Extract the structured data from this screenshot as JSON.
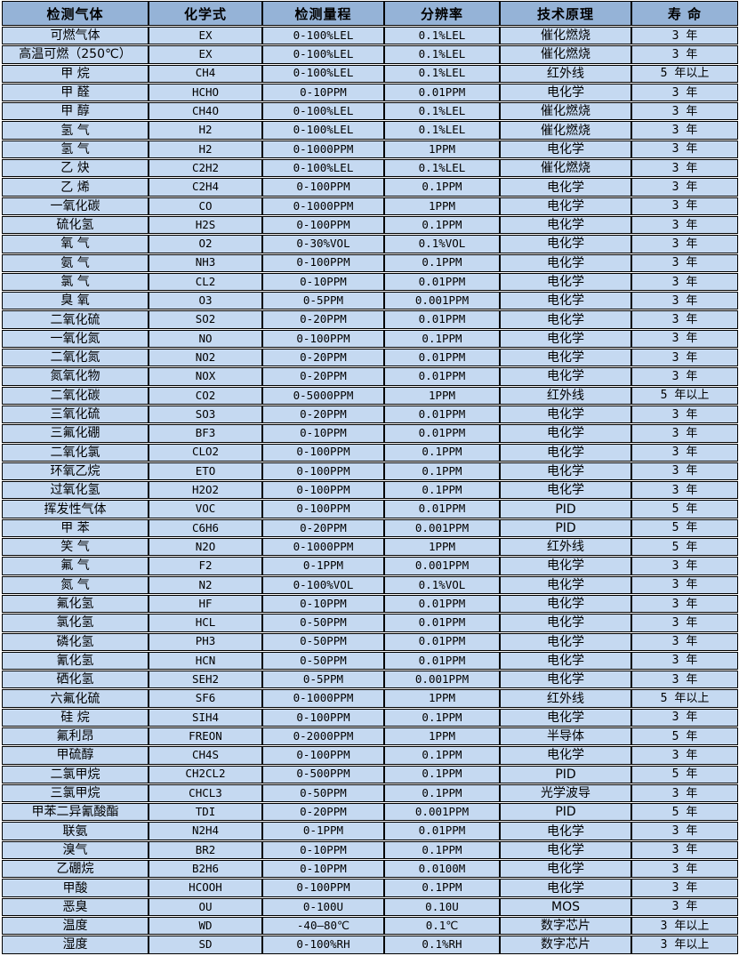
{
  "colors": {
    "header_bg": "#95B3D7",
    "row_bg": "#C5D9F1",
    "border": "#000000",
    "text": "#000000"
  },
  "table": {
    "columns": [
      "检测气体",
      "化学式",
      "检测量程",
      "分辨率",
      "技术原理",
      "寿 命"
    ],
    "column_keys": [
      "gas",
      "formula",
      "range",
      "resolution",
      "principle",
      "lifespan"
    ],
    "rows": [
      [
        "可燃气体",
        "EX",
        "0-100%LEL",
        "0.1%LEL",
        "催化燃烧",
        "3 年"
      ],
      [
        "高温可燃（250℃）",
        "EX",
        "0-100%LEL",
        "0.1%LEL",
        "催化燃烧",
        "3 年"
      ],
      [
        "甲 烷",
        "CH4",
        "0-100%LEL",
        "0.1%LEL",
        "红外线",
        "5 年以上"
      ],
      [
        "甲 醛",
        "HCHO",
        "0-10PPM",
        "0.01PPM",
        "电化学",
        "3 年"
      ],
      [
        "甲 醇",
        "CH4O",
        "0-100%LEL",
        "0.1%LEL",
        "催化燃烧",
        "3 年"
      ],
      [
        "氢 气",
        "H2",
        "0-100%LEL",
        "0.1%LEL",
        "催化燃烧",
        "3 年"
      ],
      [
        "氢 气",
        "H2",
        "0-1000PPM",
        "1PPM",
        "电化学",
        "3 年"
      ],
      [
        "乙 炔",
        "C2H2",
        "0-100%LEL",
        "0.1%LEL",
        "催化燃烧",
        "3 年"
      ],
      [
        "乙 烯",
        "C2H4",
        "0-100PPM",
        "0.1PPM",
        "电化学",
        "3 年"
      ],
      [
        "一氧化碳",
        "CO",
        "0-1000PPM",
        "1PPM",
        "电化学",
        "3 年"
      ],
      [
        "硫化氢",
        "H2S",
        "0-100PPM",
        "0.1PPM",
        "电化学",
        "3 年"
      ],
      [
        "氧 气",
        "O2",
        "0-30%VOL",
        "0.1%VOL",
        "电化学",
        "3 年"
      ],
      [
        "氨 气",
        "NH3",
        "0-100PPM",
        "0.1PPM",
        "电化学",
        "3 年"
      ],
      [
        "氯 气",
        "CL2",
        "0-10PPM",
        "0.01PPM",
        "电化学",
        "3 年"
      ],
      [
        "臭 氧",
        "O3",
        "0-5PPM",
        "0.001PPM",
        "电化学",
        "3 年"
      ],
      [
        "二氧化硫",
        "SO2",
        "0-20PPM",
        "0.01PPM",
        "电化学",
        "3 年"
      ],
      [
        "一氧化氮",
        "NO",
        "0-100PPM",
        "0.1PPM",
        "电化学",
        "3 年"
      ],
      [
        "二氧化氮",
        "NO2",
        "0-20PPM",
        "0.01PPM",
        "电化学",
        "3 年"
      ],
      [
        "氮氧化物",
        "NOX",
        "0-20PPM",
        "0.01PPM",
        "电化学",
        "3 年"
      ],
      [
        "二氧化碳",
        "CO2",
        "0-5000PPM",
        "1PPM",
        "红外线",
        "5 年以上"
      ],
      [
        "三氧化硫",
        "SO3",
        "0-20PPM",
        "0.01PPM",
        "电化学",
        "3 年"
      ],
      [
        "三氟化硼",
        "BF3",
        "0-10PPM",
        "0.01PPM",
        "电化学",
        "3 年"
      ],
      [
        "二氧化氯",
        "CLO2",
        "0-100PPM",
        "0.1PPM",
        "电化学",
        "3 年"
      ],
      [
        "环氧乙烷",
        "ETO",
        "0-100PPM",
        "0.1PPM",
        "电化学",
        "3 年"
      ],
      [
        "过氧化氢",
        "H2O2",
        "0-100PPM",
        "0.1PPM",
        "电化学",
        "3 年"
      ],
      [
        "挥发性气体",
        "VOC",
        "0-100PPM",
        "0.01PPM",
        "PID",
        "5 年"
      ],
      [
        "甲 苯",
        "C6H6",
        "0-20PPM",
        "0.001PPM",
        "PID",
        "5 年"
      ],
      [
        "笑 气",
        "N2O",
        "0-1000PPM",
        "1PPM",
        "红外线",
        "5 年"
      ],
      [
        "氟 气",
        "F2",
        "0-1PPM",
        "0.001PPM",
        "电化学",
        "3 年"
      ],
      [
        "氮 气",
        "N2",
        "0-100%VOL",
        "0.1%VOL",
        "电化学",
        "3 年"
      ],
      [
        "氟化氢",
        "HF",
        "0-10PPM",
        "0.01PPM",
        "电化学",
        "3 年"
      ],
      [
        "氯化氢",
        "HCL",
        "0-50PPM",
        "0.01PPM",
        "电化学",
        "3 年"
      ],
      [
        "磷化氢",
        "PH3",
        "0-50PPM",
        "0.01PPM",
        "电化学",
        "3 年"
      ],
      [
        "氰化氢",
        "HCN",
        "0-50PPM",
        "0.01PPM",
        "电化学",
        "3 年"
      ],
      [
        "硒化氢",
        "SEH2",
        "0-5PPM",
        "0.001PPM",
        "电化学",
        "3 年"
      ],
      [
        "六氟化硫",
        "SF6",
        "0-1000PPM",
        "1PPM",
        "红外线",
        "5 年以上"
      ],
      [
        "硅 烷",
        "SIH4",
        "0-100PPM",
        "0.1PPM",
        "电化学",
        "3 年"
      ],
      [
        "氟利昂",
        "FREON",
        "0-2000PPM",
        "1PPM",
        "半导体",
        "5 年"
      ],
      [
        "甲硫醇",
        "CH4S",
        "0-100PPM",
        "0.1PPM",
        "电化学",
        "3 年"
      ],
      [
        "二氯甲烷",
        "CH2CL2",
        "0-500PPM",
        "0.1PPM",
        "PID",
        "5 年"
      ],
      [
        "三氯甲烷",
        "CHCL3",
        "0-50PPM",
        "0.1PPM",
        "光学波导",
        "3 年"
      ],
      [
        "甲苯二异氰酸酯",
        "TDI",
        "0-20PPM",
        "0.001PPM",
        "PID",
        "5 年"
      ],
      [
        "联氨",
        "N2H4",
        "0-1PPM",
        "0.01PPM",
        "电化学",
        "3 年"
      ],
      [
        "溴气",
        "BR2",
        "0-10PPM",
        "0.1PPM",
        "电化学",
        "3 年"
      ],
      [
        "乙硼烷",
        "B2H6",
        "0-10PPM",
        "0.0100M",
        "电化学",
        "3 年"
      ],
      [
        "甲酸",
        "HCOOH",
        "0-100PPM",
        "0.1PPM",
        "电化学",
        "3 年"
      ],
      [
        "恶臭",
        "OU",
        "0-100U",
        "0.10U",
        "MOS",
        "3 年"
      ],
      [
        "温度",
        "WD",
        "-40—80℃",
        "0.1℃",
        "数字芯片",
        "3 年以上"
      ],
      [
        "湿度",
        "SD",
        "0-100%RH",
        "0.1%RH",
        "数字芯片",
        "3 年以上"
      ]
    ]
  }
}
